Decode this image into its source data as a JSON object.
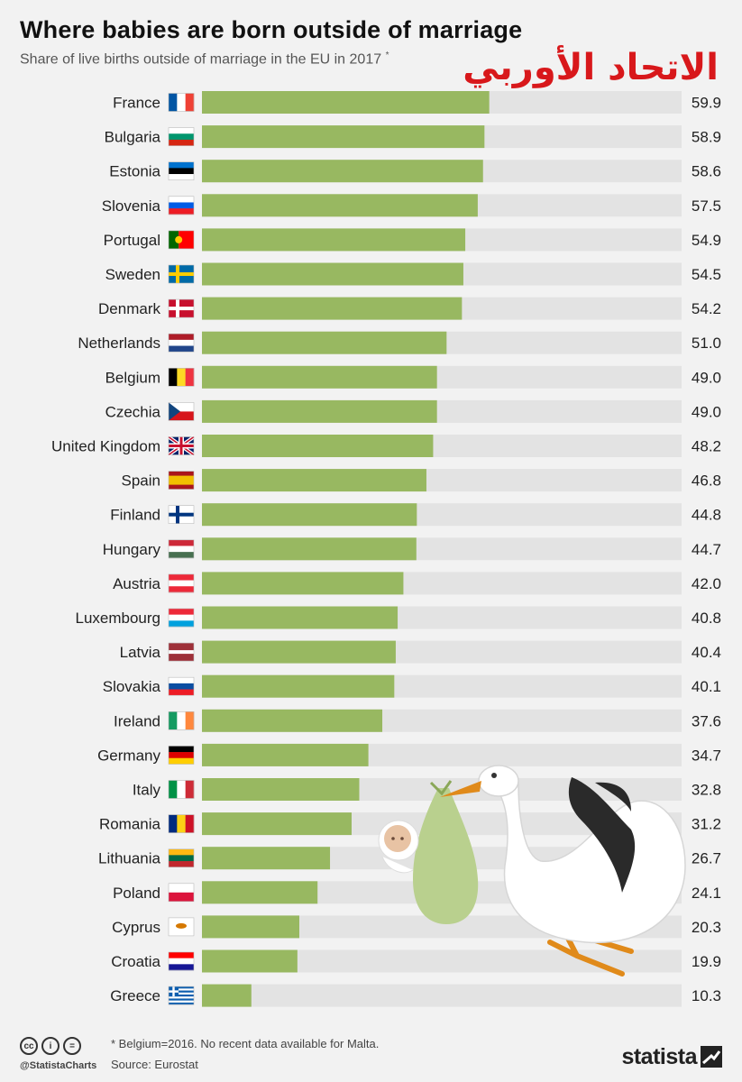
{
  "header": {
    "title": "Where babies are born outside of marriage",
    "subtitle": "Share of live births outside of marriage in the EU in 2017",
    "asterisk": "*",
    "overlay_text": "الاتحاد الأوربي"
  },
  "chart_data": {
    "type": "bar",
    "orientation": "horizontal",
    "title": "Where babies are born outside of marriage",
    "subtitle": "Share of live births outside of marriage in the EU in 2017",
    "unit": "%",
    "xlim": [
      0,
      100
    ],
    "categories": [
      "France",
      "Bulgaria",
      "Estonia",
      "Slovenia",
      "Portugal",
      "Sweden",
      "Denmark",
      "Netherlands",
      "Belgium",
      "Czechia",
      "United Kingdom",
      "Spain",
      "Finland",
      "Hungary",
      "Austria",
      "Luxembourg",
      "Latvia",
      "Slovakia",
      "Ireland",
      "Germany",
      "Italy",
      "Romania",
      "Lithuania",
      "Poland",
      "Cyprus",
      "Croatia",
      "Greece"
    ],
    "values": [
      59.9,
      58.9,
      58.6,
      57.5,
      54.9,
      54.5,
      54.2,
      51.0,
      49.0,
      49.0,
      48.2,
      46.8,
      44.8,
      44.7,
      42.0,
      40.8,
      40.4,
      40.1,
      37.6,
      34.7,
      32.8,
      31.2,
      26.7,
      24.1,
      20.3,
      19.9,
      10.3
    ],
    "value_labels": [
      "59.9",
      "58.9",
      "58.6",
      "57.5",
      "54.9",
      "54.5",
      "54.2",
      "51.0",
      "49.0",
      "49.0",
      "48.2",
      "46.8",
      "44.8",
      "44.7",
      "42.0",
      "40.8",
      "40.4",
      "40.1",
      "37.6",
      "34.7",
      "32.8",
      "31.2",
      "26.7",
      "24.1",
      "20.3",
      "19.9",
      "10.3"
    ],
    "colors": {
      "bar": "#98b861",
      "track": "#e3e3e3",
      "background": "#f2f2f2"
    }
  },
  "flags": [
    {
      "type": "v",
      "colors": [
        "#0055a4",
        "#ffffff",
        "#ef4135"
      ]
    },
    {
      "type": "h",
      "colors": [
        "#ffffff",
        "#00966e",
        "#d62612"
      ]
    },
    {
      "type": "h",
      "colors": [
        "#0072ce",
        "#000000",
        "#ffffff"
      ]
    },
    {
      "type": "h",
      "colors": [
        "#ffffff",
        "#005ce6",
        "#ed1c24"
      ]
    },
    {
      "type": "v2",
      "colors": [
        "#006600",
        "#ff0000"
      ]
    },
    {
      "type": "nordic",
      "colors": [
        "#006aa7",
        "#fecc00"
      ]
    },
    {
      "type": "nordic",
      "colors": [
        "#c8102e",
        "#ffffff"
      ]
    },
    {
      "type": "h",
      "colors": [
        "#ae1c28",
        "#ffffff",
        "#21468b"
      ]
    },
    {
      "type": "v",
      "colors": [
        "#000000",
        "#fdda24",
        "#ef3340"
      ]
    },
    {
      "type": "cz",
      "colors": [
        "#ffffff",
        "#d7141a",
        "#11457e"
      ]
    },
    {
      "type": "uk",
      "colors": [
        "#012169",
        "#ffffff",
        "#c8102e"
      ]
    },
    {
      "type": "es",
      "colors": [
        "#aa151b",
        "#f1bf00"
      ]
    },
    {
      "type": "nordic",
      "colors": [
        "#ffffff",
        "#003580"
      ]
    },
    {
      "type": "h",
      "colors": [
        "#ce2939",
        "#ffffff",
        "#477050"
      ]
    },
    {
      "type": "h",
      "colors": [
        "#ed2939",
        "#ffffff",
        "#ed2939"
      ]
    },
    {
      "type": "h",
      "colors": [
        "#ed2939",
        "#ffffff",
        "#00a1de"
      ]
    },
    {
      "type": "lv",
      "colors": [
        "#9e3039",
        "#ffffff"
      ]
    },
    {
      "type": "h",
      "colors": [
        "#ffffff",
        "#0b4ea2",
        "#ee1c25"
      ]
    },
    {
      "type": "v",
      "colors": [
        "#169b62",
        "#ffffff",
        "#ff883e"
      ]
    },
    {
      "type": "h",
      "colors": [
        "#000000",
        "#dd0000",
        "#ffce00"
      ]
    },
    {
      "type": "v",
      "colors": [
        "#009246",
        "#ffffff",
        "#ce2b37"
      ]
    },
    {
      "type": "v",
      "colors": [
        "#002b7f",
        "#fcd116",
        "#ce1126"
      ]
    },
    {
      "type": "h",
      "colors": [
        "#fdb913",
        "#006a44",
        "#c1272d"
      ]
    },
    {
      "type": "h2",
      "colors": [
        "#ffffff",
        "#dc143c"
      ]
    },
    {
      "type": "cy",
      "colors": [
        "#ffffff",
        "#d57800"
      ]
    },
    {
      "type": "h",
      "colors": [
        "#ff0000",
        "#ffffff",
        "#171796"
      ]
    },
    {
      "type": "gr",
      "colors": [
        "#0d5eaf",
        "#ffffff"
      ]
    }
  ],
  "footer": {
    "note": "* Belgium=2016. No recent data available for Malta.",
    "source": "Source: Eurostat",
    "handle": "@StatistaCharts",
    "cc_icons": [
      "cc",
      "i",
      "="
    ],
    "brand": "statista"
  }
}
